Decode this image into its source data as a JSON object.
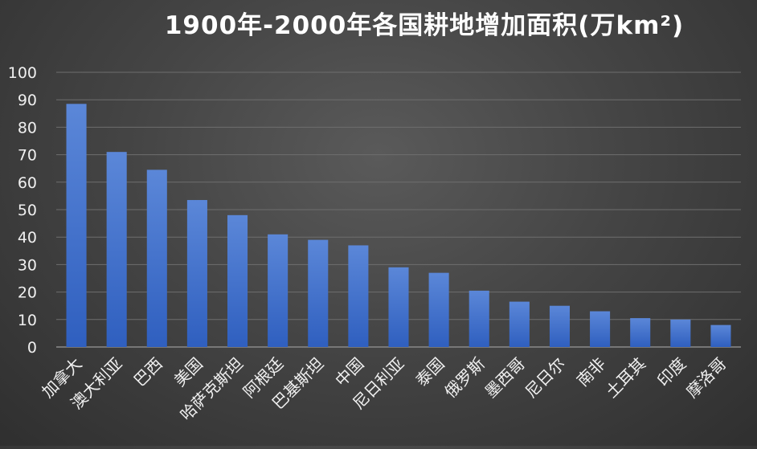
{
  "chart_data": {
    "type": "bar",
    "title": "1900年-2000年各国耕地增加面积(万km²)",
    "categories": [
      "加拿大",
      "澳大利亚",
      "巴西",
      "美国",
      "哈萨克斯坦",
      "阿根廷",
      "巴基斯坦",
      "中国",
      "尼日利亚",
      "泰国",
      "俄罗斯",
      "墨西哥",
      "尼日尔",
      "南非",
      "土耳其",
      "印度",
      "摩洛哥"
    ],
    "values": [
      88.5,
      71,
      64.5,
      53.5,
      48,
      41,
      39,
      37,
      29,
      27,
      20.5,
      16.5,
      15,
      13,
      10.5,
      10,
      8
    ],
    "ylim": [
      0,
      100
    ],
    "yticks": [
      0,
      10,
      20,
      30,
      40,
      50,
      60,
      70,
      80,
      90,
      100
    ],
    "grid": true,
    "legend": "none",
    "colors": {
      "bar_top": "#5b87d8",
      "bar_bottom": "#2f5fbf",
      "grid": "#6e6e6e",
      "axis": "#8a8a8a",
      "text": "#ffffff",
      "tick_text": "#f0f0f0"
    }
  }
}
